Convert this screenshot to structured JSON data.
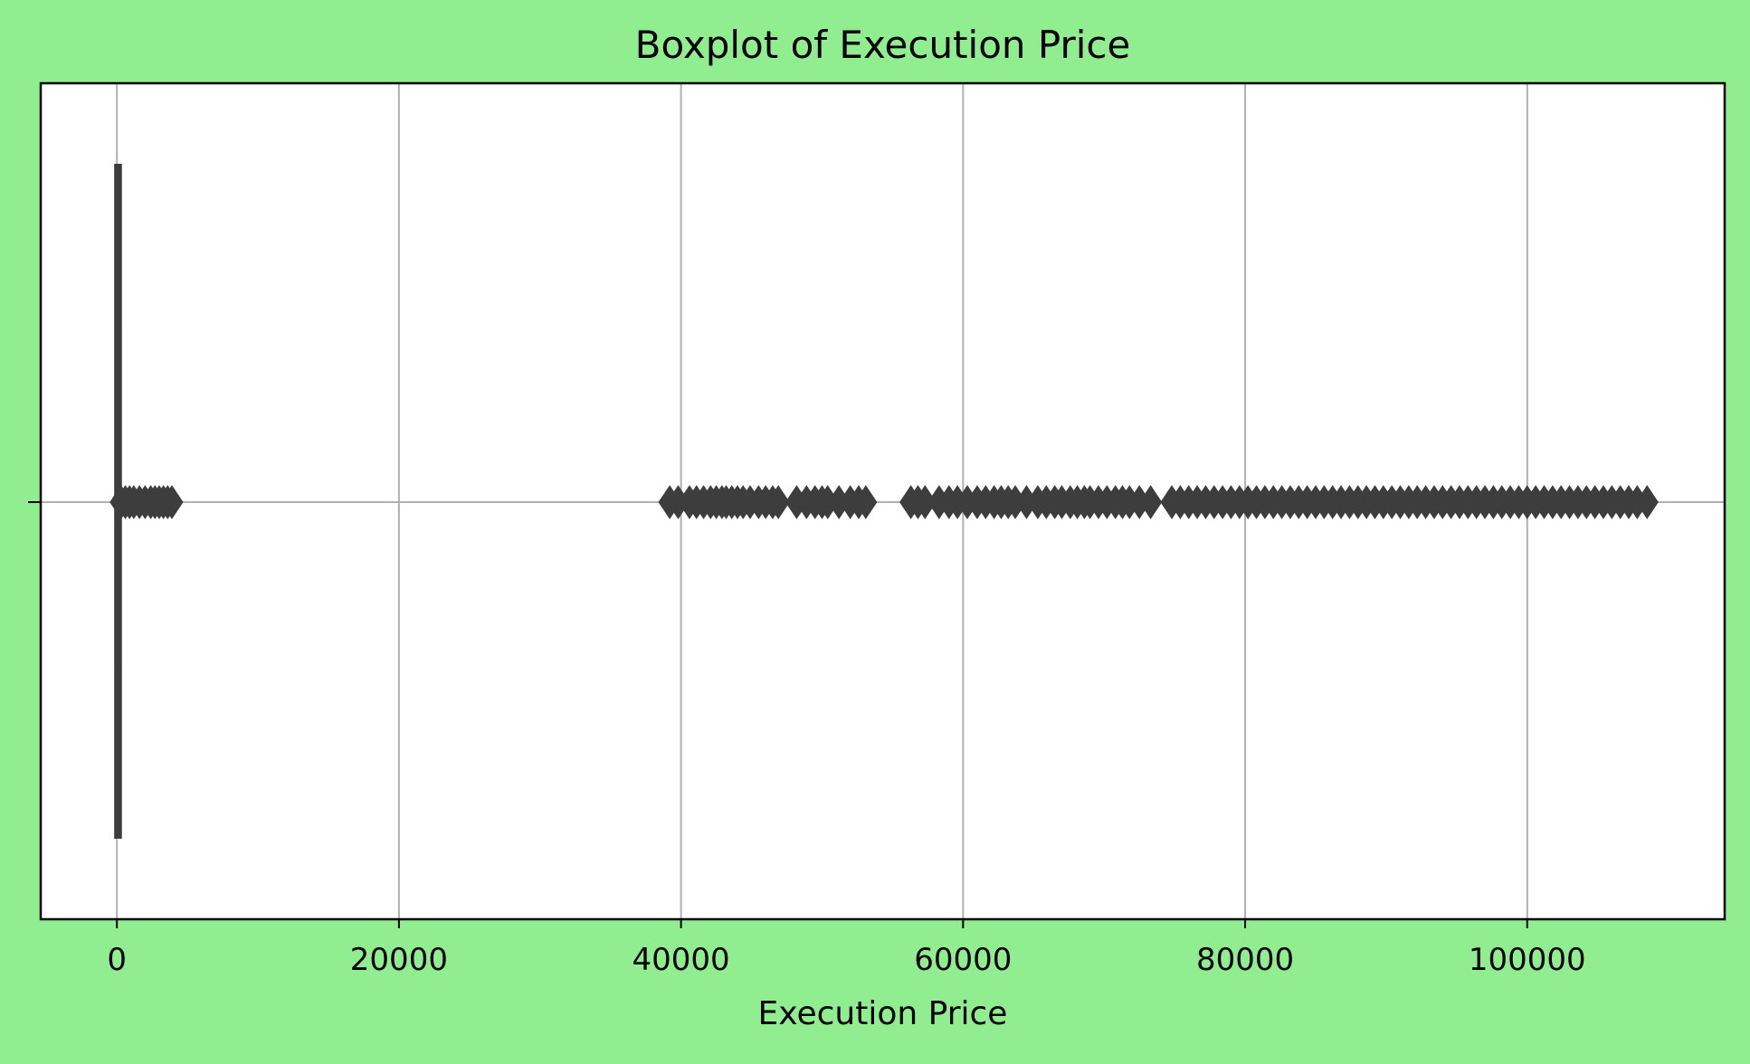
{
  "chart_data": {
    "type": "boxplot",
    "title": "Boxplot of Execution Price",
    "xlabel": "Execution Price",
    "ylabel": "",
    "orientation": "horizontal",
    "xlim": [
      -5400,
      114000
    ],
    "xticks": [
      0,
      20000,
      40000,
      60000,
      80000,
      100000
    ],
    "xtick_labels": [
      "0",
      "20000",
      "40000",
      "60000",
      "80000",
      "100000"
    ],
    "grid": true,
    "colors": {
      "background": "#90ee90",
      "plot_area": "#ffffff",
      "box": "#3d3d3d",
      "grid": "#b0b0b0"
    },
    "box": {
      "whisker_low": 0,
      "q1": 0,
      "median": 50,
      "q3": 100,
      "whisker_high": 250
    },
    "outliers": [
      300,
      600,
      900,
      1200,
      1600,
      2000,
      2400,
      2700,
      3000,
      3300,
      3600,
      3900,
      39200,
      39800,
      40600,
      41100,
      41600,
      42100,
      42500,
      42900,
      43200,
      43600,
      44000,
      44400,
      44900,
      45500,
      46000,
      46500,
      46900,
      48200,
      48900,
      49500,
      50000,
      50400,
      51200,
      52000,
      52600,
      53100,
      56300,
      56800,
      57300,
      58300,
      59000,
      59600,
      60300,
      61000,
      61600,
      62200,
      62700,
      63200,
      63700,
      64500,
      65300,
      65900,
      66500,
      67000,
      67600,
      68100,
      68600,
      69000,
      69600,
      70200,
      70800,
      71300,
      71800,
      72500,
      73300,
      74800,
      75400,
      76000,
      76600,
      77200,
      77800,
      78400,
      79000,
      79600,
      80200,
      80800,
      81400,
      82000,
      82600,
      83200,
      83800,
      84400,
      85000,
      85600,
      86200,
      86800,
      87400,
      88000,
      88600,
      89200,
      89800,
      90400,
      91000,
      91600,
      92200,
      92800,
      93400,
      94000,
      94600,
      95200,
      95800,
      96400,
      97000,
      97600,
      98200,
      98800,
      99400,
      100000,
      100600,
      101200,
      101800,
      102400,
      103000,
      103600,
      104200,
      104800,
      105400,
      106000,
      106600,
      107200,
      107800,
      108500
    ]
  }
}
